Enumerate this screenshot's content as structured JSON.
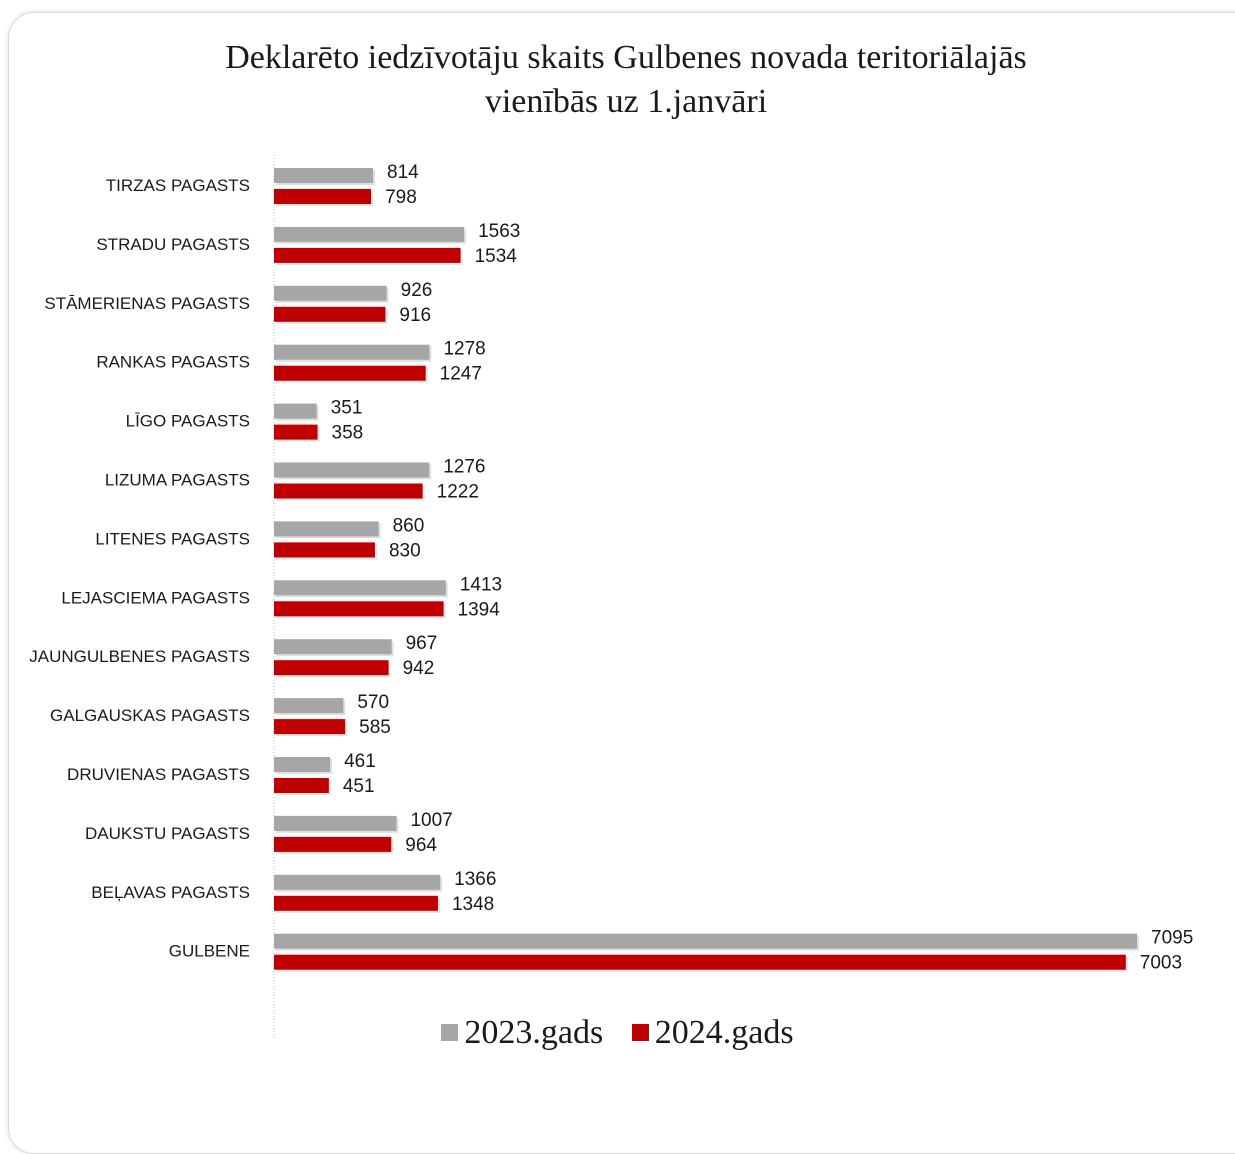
{
  "chart_data": {
    "type": "bar",
    "orientation": "horizontal",
    "title": "Deklarēto iedzīvotāju skaits Gulbenes novada teritoriālajās vienībās uz 1.janvāri",
    "title_lines": [
      "Deklarēto iedzīvotāju skaits Gulbenes novada teritoriālajās",
      "vienībās uz 1.janvāri"
    ],
    "categories": [
      "TIRZAS PAGASTS",
      "STRADU PAGASTS",
      "STĀMERIENAS PAGASTS",
      "RANKAS PAGASTS",
      "LĪGO PAGASTS",
      "LIZUMA PAGASTS",
      "LITENES PAGASTS",
      "LEJASCIEMA PAGASTS",
      "JAUNGULBENES PAGASTS",
      "GALGAUSKAS PAGASTS",
      "DRUVIENAS PAGASTS",
      "DAUKSTU PAGASTS",
      "BEĻAVAS PAGASTS",
      "GULBENE"
    ],
    "series": [
      {
        "name": "2023.gads",
        "color": "#a6a6a6",
        "values": [
          814,
          1563,
          926,
          1278,
          351,
          1276,
          860,
          1413,
          967,
          570,
          461,
          1007,
          1366,
          7095
        ]
      },
      {
        "name": "2024.gads",
        "color": "#c00000",
        "values": [
          798,
          1534,
          916,
          1247,
          358,
          1222,
          830,
          1394,
          942,
          585,
          451,
          964,
          1348,
          7003
        ]
      }
    ],
    "xlim": [
      0,
      7095
    ],
    "grid": false,
    "data_labels": true,
    "legend_position": "bottom"
  }
}
